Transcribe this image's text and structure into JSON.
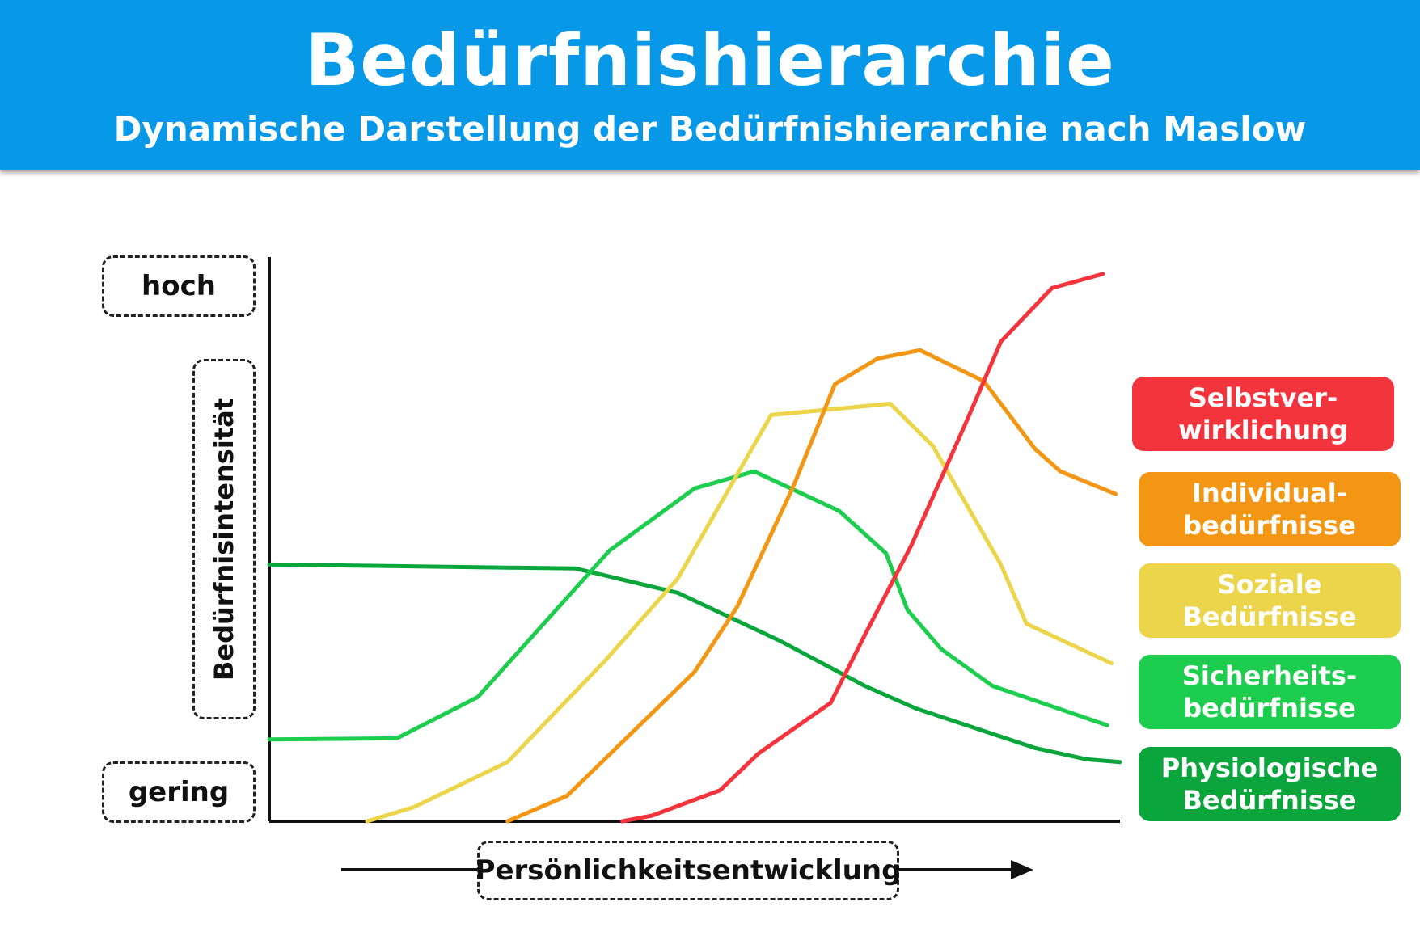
{
  "header": {
    "title": "Bedürfnishierarchie",
    "subtitle": "Dynamische Darstellung der Bedürfnishierarchie nach Maslow"
  },
  "chart_data": {
    "type": "line",
    "title": "Bedürfnishierarchie",
    "subtitle": "Dynamische Darstellung der Bedürfnishierarchie nach Maslow",
    "xlabel": "Persönlichkeitsentwicklung",
    "ylabel": "Bedürfnisintensität",
    "y_levels": {
      "high": "hoch",
      "low": "gering"
    },
    "xlim": [
      0,
      100
    ],
    "ylim": [
      0,
      100
    ],
    "grid": false,
    "legend_position": "right",
    "series": [
      {
        "name": "Physiologische\nBedürfnisse",
        "color": "#0aa63c",
        "points": [
          [
            0,
            45.5
          ],
          [
            36,
            44.8
          ],
          [
            48,
            40.5
          ],
          [
            60,
            32
          ],
          [
            70,
            24
          ],
          [
            76,
            20
          ],
          [
            90,
            13
          ],
          [
            96,
            11
          ],
          [
            100,
            10.5
          ]
        ]
      },
      {
        "name": "Sicherheits-\nbedürfnisse",
        "color": "#1dcd4e",
        "points": [
          [
            0,
            14.5
          ],
          [
            15,
            14.7
          ],
          [
            24.5,
            22
          ],
          [
            40,
            48
          ],
          [
            50,
            59
          ],
          [
            57,
            62
          ],
          [
            67,
            55
          ],
          [
            72.5,
            47.5
          ],
          [
            75,
            37.5
          ],
          [
            79,
            30.5
          ],
          [
            85,
            24
          ],
          [
            98.5,
            17
          ]
        ]
      },
      {
        "name": "Soziale\nBedürfnisse",
        "color": "#ecd54a",
        "points": [
          [
            11.5,
            0
          ],
          [
            17,
            2.5
          ],
          [
            28,
            10.5
          ],
          [
            39.5,
            28.5
          ],
          [
            48,
            43
          ],
          [
            59,
            72
          ],
          [
            73,
            74
          ],
          [
            78,
            66.5
          ],
          [
            86,
            45.5
          ],
          [
            89,
            35
          ],
          [
            99,
            28
          ]
        ]
      },
      {
        "name": "Individual-\nbedürfnisse",
        "color": "#f39614",
        "points": [
          [
            28,
            0
          ],
          [
            35,
            4.5
          ],
          [
            50,
            26.5
          ],
          [
            55,
            38
          ],
          [
            61.5,
            59
          ],
          [
            66.5,
            77.5
          ],
          [
            71.5,
            82
          ],
          [
            76.5,
            83.5
          ],
          [
            84,
            78
          ],
          [
            90,
            66
          ],
          [
            93,
            62
          ],
          [
            99.5,
            58
          ]
        ]
      },
      {
        "name": "Selbstver-\nwirklichung",
        "color": "#f3343d",
        "points": [
          [
            41.5,
            0
          ],
          [
            45,
            1
          ],
          [
            53,
            5.5
          ],
          [
            57.5,
            12
          ],
          [
            66,
            21
          ],
          [
            70,
            33
          ],
          [
            75.5,
            49
          ],
          [
            82,
            71
          ],
          [
            86,
            85
          ],
          [
            92,
            94.5
          ],
          [
            98,
            97
          ]
        ]
      }
    ]
  }
}
